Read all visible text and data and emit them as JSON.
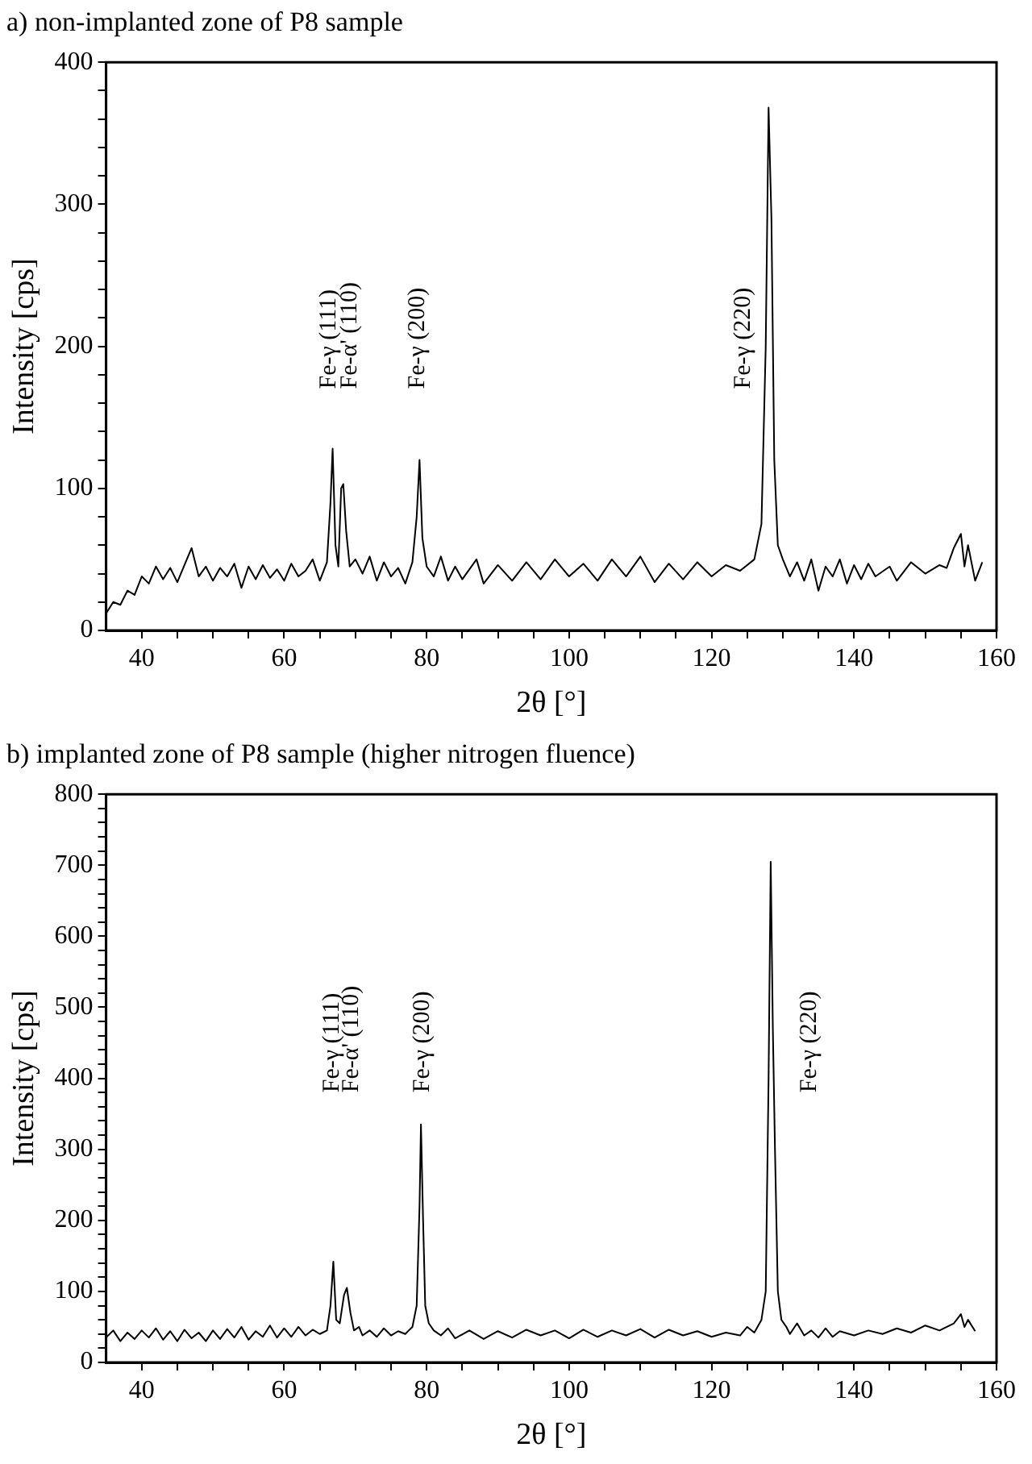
{
  "chart_data": [
    {
      "type": "line",
      "title": "a) non-implanted zone of P8 sample",
      "xlabel": "2θ [°]",
      "ylabel": "Intensity [cps]",
      "xlim": [
        35,
        160
      ],
      "ylim": [
        0,
        400
      ],
      "xticks": [
        40,
        {
          "value": 45,
          "label": null
        },
        {
          "value": 50,
          "label": null
        },
        {
          "value": 55,
          "label": null
        },
        60,
        {
          "value": 65,
          "label": null
        },
        {
          "value": 70,
          "label": null
        },
        {
          "value": 75,
          "label": null
        },
        80,
        {
          "value": 85,
          "label": null
        },
        {
          "value": 90,
          "label": null
        },
        {
          "value": 95,
          "label": null
        },
        100,
        {
          "value": 105,
          "label": null
        },
        {
          "value": 110,
          "label": null
        },
        {
          "value": 115,
          "label": null
        },
        120,
        {
          "value": 125,
          "label": null
        },
        {
          "value": 130,
          "label": null
        },
        {
          "value": 135,
          "label": null
        },
        140,
        {
          "value": 145,
          "label": null
        },
        {
          "value": 150,
          "label": null
        },
        {
          "value": 155,
          "label": null
        },
        160
      ],
      "yticks": [
        0,
        {
          "value": 20,
          "label": null
        },
        {
          "value": 40,
          "label": null
        },
        {
          "value": 60,
          "label": null
        },
        {
          "value": 80,
          "label": null
        },
        100,
        {
          "value": 120,
          "label": null
        },
        {
          "value": 140,
          "label": null
        },
        {
          "value": 160,
          "label": null
        },
        {
          "value": 180,
          "label": null
        },
        200,
        {
          "value": 220,
          "label": null
        },
        {
          "value": 240,
          "label": null
        },
        {
          "value": 260,
          "label": null
        },
        {
          "value": 280,
          "label": null
        },
        300,
        {
          "value": 320,
          "label": null
        },
        {
          "value": 340,
          "label": null
        },
        {
          "value": 360,
          "label": null
        },
        {
          "value": 380,
          "label": null
        },
        400
      ],
      "grid": false,
      "legend": false,
      "marker": "none",
      "line_style": "solid",
      "annotations": [
        "Fe-γ (111)",
        "Fe-α' (110)",
        "Fe-γ (200)",
        "Fe-γ (220)"
      ],
      "series": [
        {
          "color": "#000000",
          "x": [
            35,
            36,
            37,
            38,
            39,
            40,
            41,
            42,
            43,
            44,
            45,
            46,
            47,
            48,
            49,
            50,
            51,
            52,
            53,
            54,
            55,
            56,
            57,
            58,
            59,
            60,
            61,
            62,
            63,
            64,
            65,
            66,
            66.5,
            66.8,
            67.2,
            67.6,
            68.0,
            68.3,
            68.7,
            69.2,
            70,
            71,
            72,
            73,
            74,
            75,
            76,
            77,
            78,
            78.6,
            79.0,
            79.4,
            80,
            81,
            82,
            83,
            84,
            85,
            87,
            88,
            90,
            92,
            94,
            96,
            98,
            100,
            102,
            104,
            106,
            108,
            110,
            112,
            114,
            116,
            118,
            120,
            122,
            124,
            126,
            127,
            127.6,
            128.0,
            128.4,
            128.8,
            129.3,
            130,
            131,
            132,
            133,
            134,
            135,
            136,
            137,
            138,
            139,
            140,
            141,
            142,
            143,
            145,
            146,
            148,
            150,
            152,
            153,
            154,
            155,
            155.5,
            156,
            157,
            158
          ],
          "values": [
            12,
            20,
            18,
            28,
            25,
            38,
            33,
            45,
            36,
            44,
            34,
            46,
            58,
            38,
            45,
            35,
            44,
            38,
            47,
            30,
            45,
            36,
            46,
            37,
            43,
            35,
            47,
            38,
            42,
            50,
            35,
            48,
            90,
            128,
            60,
            45,
            100,
            103,
            70,
            45,
            50,
            40,
            52,
            35,
            48,
            38,
            44,
            33,
            48,
            80,
            120,
            65,
            45,
            38,
            52,
            35,
            45,
            36,
            50,
            33,
            46,
            35,
            48,
            36,
            50,
            38,
            47,
            35,
            50,
            38,
            52,
            34,
            47,
            36,
            48,
            38,
            46,
            42,
            50,
            75,
            200,
            368,
            290,
            120,
            60,
            50,
            38,
            48,
            35,
            50,
            28,
            45,
            38,
            50,
            33,
            46,
            36,
            47,
            38,
            45,
            35,
            48,
            40,
            46,
            44,
            58,
            68,
            45,
            60,
            35,
            48
          ]
        }
      ]
    },
    {
      "type": "line",
      "title": "b) implanted zone of P8 sample (higher nitrogen fluence)",
      "xlabel": "2θ [°]",
      "ylabel": "Intensity [cps]",
      "xlim": [
        35,
        160
      ],
      "ylim": [
        0,
        800
      ],
      "xticks": [
        40,
        {
          "value": 45,
          "label": null
        },
        {
          "value": 50,
          "label": null
        },
        {
          "value": 55,
          "label": null
        },
        60,
        {
          "value": 65,
          "label": null
        },
        {
          "value": 70,
          "label": null
        },
        {
          "value": 75,
          "label": null
        },
        80,
        {
          "value": 85,
          "label": null
        },
        {
          "value": 90,
          "label": null
        },
        {
          "value": 95,
          "label": null
        },
        100,
        {
          "value": 105,
          "label": null
        },
        {
          "value": 110,
          "label": null
        },
        {
          "value": 115,
          "label": null
        },
        120,
        {
          "value": 125,
          "label": null
        },
        {
          "value": 130,
          "label": null
        },
        {
          "value": 135,
          "label": null
        },
        140,
        {
          "value": 145,
          "label": null
        },
        {
          "value": 150,
          "label": null
        },
        {
          "value": 155,
          "label": null
        },
        160
      ],
      "yticks": [
        0,
        {
          "value": 20,
          "label": null
        },
        {
          "value": 40,
          "label": null
        },
        {
          "value": 60,
          "label": null
        },
        {
          "value": 80,
          "label": null
        },
        100,
        {
          "value": 120,
          "label": null
        },
        {
          "value": 140,
          "label": null
        },
        {
          "value": 160,
          "label": null
        },
        {
          "value": 180,
          "label": null
        },
        200,
        {
          "value": 220,
          "label": null
        },
        {
          "value": 240,
          "label": null
        },
        {
          "value": 260,
          "label": null
        },
        {
          "value": 280,
          "label": null
        },
        300,
        {
          "value": 320,
          "label": null
        },
        {
          "value": 340,
          "label": null
        },
        {
          "value": 360,
          "label": null
        },
        {
          "value": 380,
          "label": null
        },
        400,
        {
          "value": 420,
          "label": null
        },
        {
          "value": 440,
          "label": null
        },
        {
          "value": 460,
          "label": null
        },
        {
          "value": 480,
          "label": null
        },
        500,
        {
          "value": 520,
          "label": null
        },
        {
          "value": 540,
          "label": null
        },
        {
          "value": 560,
          "label": null
        },
        {
          "value": 580,
          "label": null
        },
        600,
        {
          "value": 620,
          "label": null
        },
        {
          "value": 640,
          "label": null
        },
        {
          "value": 660,
          "label": null
        },
        {
          "value": 680,
          "label": null
        },
        700,
        {
          "value": 720,
          "label": null
        },
        {
          "value": 740,
          "label": null
        },
        {
          "value": 760,
          "label": null
        },
        {
          "value": 780,
          "label": null
        },
        800
      ],
      "grid": false,
      "legend": false,
      "marker": "none",
      "line_style": "solid",
      "annotations": [
        "Fe-γ (111)",
        "Fe-α' (110)",
        "Fe-γ (200)",
        "Fe-γ (220)"
      ],
      "series": [
        {
          "color": "#000000",
          "x": [
            35,
            36,
            37,
            38,
            39,
            40,
            41,
            42,
            43,
            44,
            45,
            46,
            47,
            48,
            49,
            50,
            51,
            52,
            53,
            54,
            55,
            56,
            57,
            58,
            59,
            60,
            61,
            62,
            63,
            64,
            65,
            66,
            66.5,
            66.9,
            67.3,
            67.8,
            68.4,
            68.8,
            69.3,
            69.8,
            70.5,
            71,
            72,
            73,
            74,
            75,
            76,
            77,
            78,
            78.6,
            79.0,
            79.2,
            79.5,
            79.8,
            80.3,
            81,
            82,
            83,
            84,
            86,
            88,
            90,
            92,
            94,
            96,
            98,
            100,
            102,
            104,
            106,
            108,
            110,
            112,
            114,
            116,
            118,
            120,
            122,
            124,
            125,
            126,
            127,
            127.6,
            128.0,
            128.3,
            128.6,
            128.9,
            129.3,
            129.8,
            130.5,
            131,
            132,
            133,
            134,
            135,
            136,
            137,
            138,
            140,
            142,
            144,
            146,
            148,
            150,
            152,
            154,
            155,
            155.5,
            156,
            157
          ],
          "values": [
            35,
            45,
            30,
            42,
            33,
            45,
            35,
            48,
            32,
            44,
            30,
            46,
            34,
            42,
            30,
            45,
            33,
            47,
            35,
            50,
            32,
            44,
            36,
            52,
            35,
            48,
            36,
            50,
            38,
            46,
            40,
            45,
            80,
            142,
            60,
            55,
            95,
            105,
            70,
            45,
            50,
            38,
            45,
            36,
            48,
            38,
            44,
            40,
            50,
            80,
            220,
            335,
            200,
            80,
            55,
            45,
            38,
            48,
            34,
            45,
            33,
            44,
            35,
            46,
            38,
            45,
            34,
            46,
            36,
            45,
            38,
            47,
            35,
            46,
            38,
            44,
            36,
            42,
            38,
            50,
            42,
            60,
            100,
            400,
            705,
            470,
            300,
            100,
            60,
            50,
            40,
            55,
            38,
            45,
            35,
            48,
            36,
            44,
            38,
            45,
            40,
            48,
            42,
            52,
            45,
            55,
            68,
            50,
            60,
            44
          ]
        }
      ]
    }
  ]
}
